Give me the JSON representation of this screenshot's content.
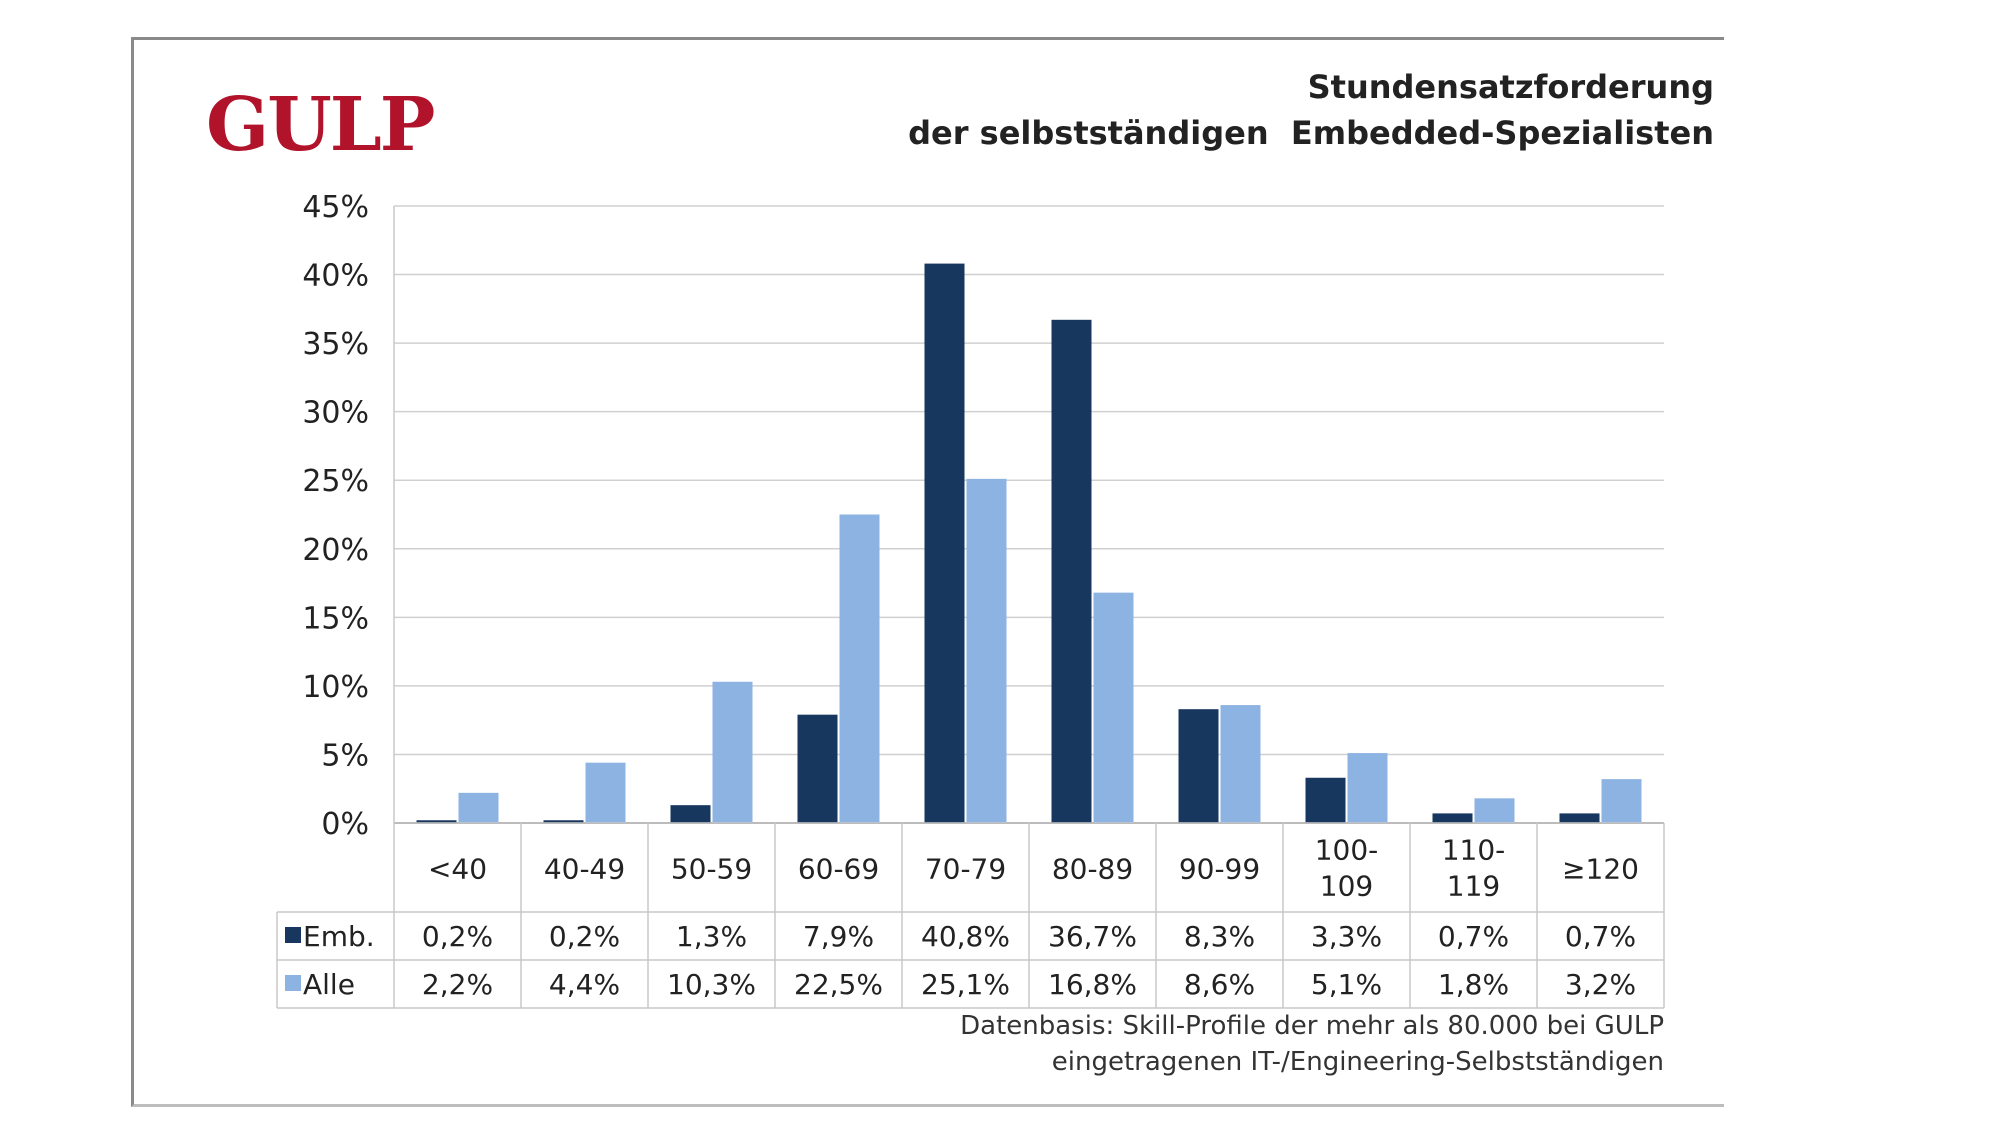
{
  "logo": {
    "text": "GULP",
    "color": "#b0132a"
  },
  "chart_data": {
    "type": "bar",
    "title": "Stundensatzforderung",
    "subtitle": "der selbstständigen  Embedded-Spezialisten",
    "categories": [
      "<40",
      "40-49",
      "50-59",
      "60-69",
      "70-79",
      "80-89",
      "90-99",
      "100-109",
      "110-119",
      "≥120"
    ],
    "category_lines": [
      [
        "<40"
      ],
      [
        "40-49"
      ],
      [
        "50-59"
      ],
      [
        "60-69"
      ],
      [
        "70-79"
      ],
      [
        "80-89"
      ],
      [
        "90-99"
      ],
      [
        "100-",
        "109"
      ],
      [
        "110-",
        "119"
      ],
      [
        "≥120"
      ]
    ],
    "series": [
      {
        "name": "Emb.",
        "color": "#17375e",
        "values": [
          0.2,
          0.2,
          1.3,
          7.9,
          40.8,
          36.7,
          8.3,
          3.3,
          0.7,
          0.7
        ],
        "labels": [
          "0,2%",
          "0,2%",
          "1,3%",
          "7,9%",
          "40,8%",
          "36,7%",
          "8,3%",
          "3,3%",
          "0,7%",
          "0,7%"
        ]
      },
      {
        "name": "Alle",
        "color": "#8db3e2",
        "values": [
          2.2,
          4.4,
          10.3,
          22.5,
          25.1,
          16.8,
          8.6,
          5.1,
          1.8,
          3.2
        ],
        "labels": [
          "2,2%",
          "4,4%",
          "10,3%",
          "22,5%",
          "25,1%",
          "16,8%",
          "8,6%",
          "5,1%",
          "1,8%",
          "3,2%"
        ]
      }
    ],
    "ylim": [
      0,
      45
    ],
    "yticks": [
      "0%",
      "5%",
      "10%",
      "15%",
      "20%",
      "25%",
      "30%",
      "35%",
      "40%",
      "45%"
    ],
    "grid": true,
    "legend": "data table"
  },
  "footnote": {
    "line1": "Datenbasis: Skill-Profile der mehr als 80.000 bei GULP",
    "line2": "eingetragenen IT-/Engineering-Selbstständigen"
  }
}
